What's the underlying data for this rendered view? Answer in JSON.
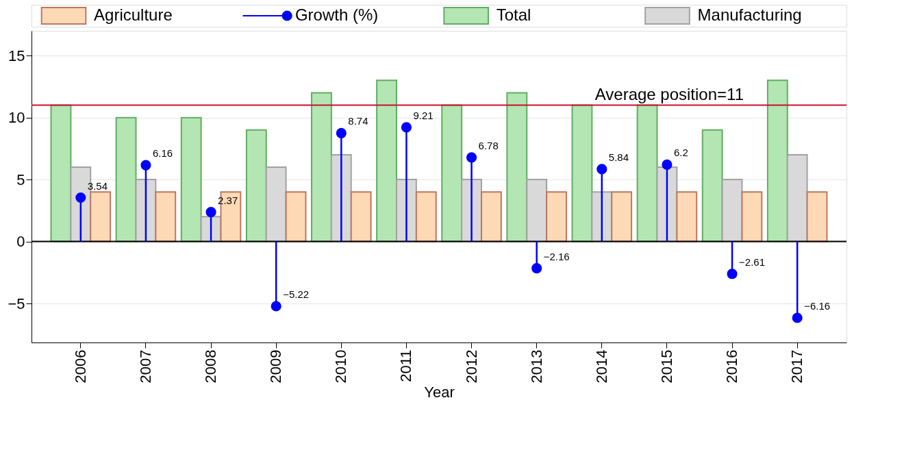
{
  "chart_data": {
    "type": "bar",
    "xlabel": "Year",
    "categories": [
      "2006",
      "2007",
      "2008",
      "2009",
      "2010",
      "2011",
      "2012",
      "2013",
      "2014",
      "2015",
      "2016",
      "2017"
    ],
    "series": [
      {
        "name": "Agriculture",
        "color": "#fdd9b5",
        "values": [
          4,
          4,
          4,
          4,
          4,
          4,
          4,
          4,
          4,
          4,
          4,
          4
        ]
      },
      {
        "name": "Growth (%)",
        "type": "lollipop",
        "color": "#0000ff",
        "marker": "circle",
        "data_labels": true,
        "values": [
          3.54,
          6.16,
          2.37,
          -5.22,
          8.74,
          9.21,
          6.78,
          -2.16,
          5.84,
          6.2,
          -2.61,
          -6.16
        ]
      },
      {
        "name": "Total",
        "color": "#b3e6b3",
        "values": [
          11,
          10,
          10,
          9,
          12,
          13,
          11,
          12,
          11,
          11,
          9,
          13
        ]
      },
      {
        "name": "Manufacturing",
        "color": "#d9d9d9",
        "values": [
          6,
          5,
          2,
          6,
          7,
          5,
          5,
          5,
          4,
          6,
          5,
          7
        ]
      }
    ],
    "ylim": [
      -8.15,
      17
    ],
    "yticks": [
      -5,
      0,
      5,
      10,
      15
    ],
    "grid": "y",
    "legend": "top",
    "ref_lines": [
      {
        "axis": "y",
        "value": 11,
        "label": "Average position=11",
        "color": "#c8102e"
      },
      {
        "axis": "y",
        "value": 0,
        "label": null,
        "color": "#000000"
      }
    ]
  }
}
